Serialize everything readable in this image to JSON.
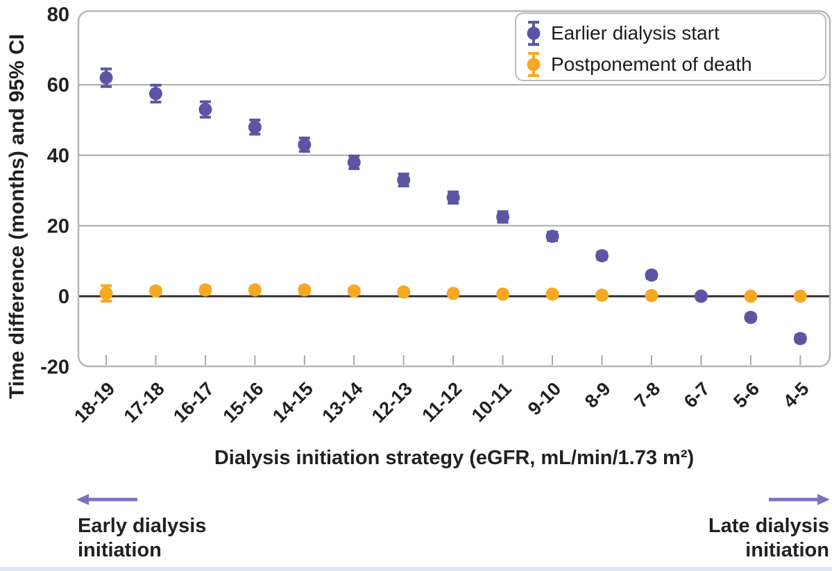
{
  "figure": {
    "background": "#ffffff",
    "bottom_bar_color": "#dde9f2"
  },
  "annotations": {
    "arrow_color": "#7c71c0",
    "left_line1": "Early dialysis",
    "left_line2": "initiation",
    "right_line1": "Late dialysis",
    "right_line2": "initiation"
  },
  "chart_data": {
    "type": "scatter",
    "title": "",
    "xlabel": "Dialysis initiation strategy (eGFR, mL/min/1.73 m²)",
    "ylabel": "Time difference (months) and 95% CI",
    "categories": [
      "18-19",
      "17-18",
      "16-17",
      "15-16",
      "14-15",
      "13-14",
      "12-13",
      "11-12",
      "10-11",
      "9-10",
      "8-9",
      "7-8",
      "6-7",
      "5-6",
      "4-5"
    ],
    "y_ticks": [
      80,
      60,
      40,
      20,
      0,
      -20
    ],
    "ylim": [
      -20,
      80
    ],
    "grid_values": [
      60,
      40,
      20
    ],
    "zero_line_value": 0,
    "grid_on": true,
    "legend_position": "top-right",
    "series": [
      {
        "name": "Earlier dialysis start",
        "color": "#5d55a4",
        "values": [
          62,
          57.5,
          53,
          48,
          43,
          38,
          33,
          28,
          22.5,
          17,
          11.5,
          6,
          0,
          -6,
          -12
        ],
        "ci_half": [
          2.5,
          2.4,
          2.2,
          2.0,
          1.9,
          1.8,
          1.7,
          1.6,
          1.5,
          1.2,
          1.0,
          0.9,
          0.8,
          0.9,
          1.0
        ]
      },
      {
        "name": "Postponement of death",
        "color": "#f7a823",
        "values": [
          0.8,
          1.5,
          1.8,
          1.8,
          1.8,
          1.5,
          1.2,
          0.8,
          0.6,
          0.6,
          0.3,
          0.2,
          0.1,
          0,
          0
        ],
        "ci_half": [
          2.2,
          0.9,
          0.9,
          0.9,
          0.9,
          0.8,
          0.7,
          0.6,
          0.5,
          0.5,
          0.4,
          0.4,
          0.3,
          0.3,
          0.4
        ]
      }
    ],
    "colors": {
      "grid": "#a9a9a9",
      "zero_line": "#2e2e2e",
      "plot_border": "#b6b6b6",
      "tick_text": "#231f20"
    }
  }
}
